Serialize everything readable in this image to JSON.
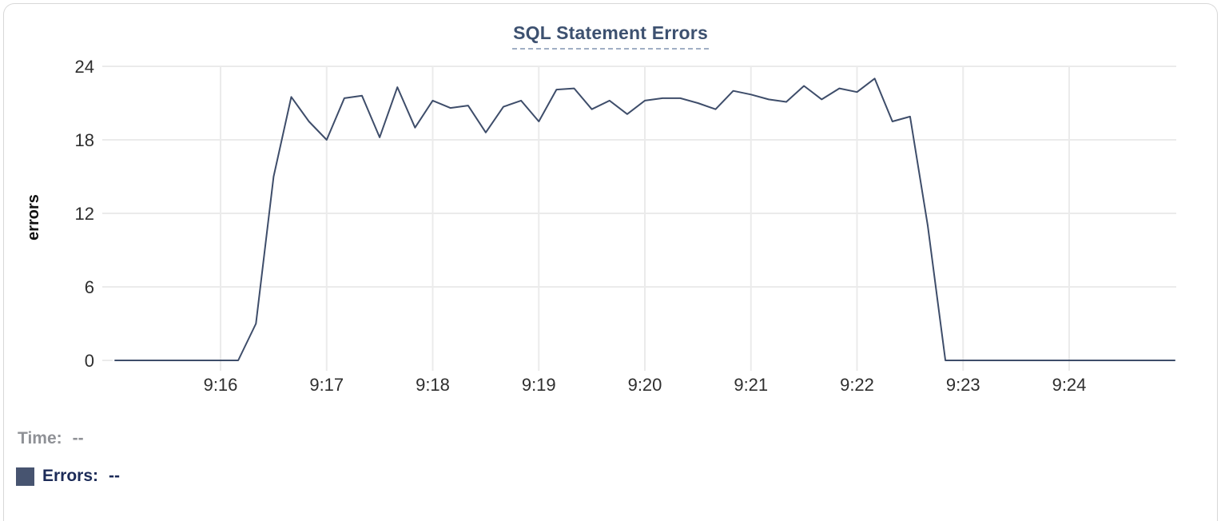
{
  "header": {
    "title": "SQL Statement Errors"
  },
  "legend": {
    "time_label": "Time:",
    "time_value": "--",
    "errors_label": "Errors:",
    "errors_value": "--"
  },
  "colors": {
    "line": "#3e4d6a",
    "swatch": "#475470",
    "title": "#3d5170",
    "title_underline": "#a0aec4",
    "grid": "#ebebeb",
    "tick_text": "#2e2e2e",
    "axis_label_text": "#111111",
    "legend_time_text": "#8f9196",
    "legend_errors_text": "#1c2b58",
    "card_border": "#d8d8d8"
  },
  "chart_data": {
    "type": "line",
    "title": "SQL Statement Errors",
    "xlabel": "",
    "ylabel": "errors",
    "ylim": [
      0,
      24
    ],
    "yticks": [
      0,
      6,
      12,
      18,
      24
    ],
    "xticks": [
      "9:16",
      "9:17",
      "9:18",
      "9:19",
      "9:20",
      "9:21",
      "9:22",
      "9:23",
      "9:24"
    ],
    "grid": true,
    "legend_position": "bottom-left",
    "series": [
      {
        "name": "Errors",
        "x": [
          "9:15:00",
          "9:15:10",
          "9:15:20",
          "9:15:30",
          "9:15:40",
          "9:15:50",
          "9:16:00",
          "9:16:10",
          "9:16:20",
          "9:16:30",
          "9:16:40",
          "9:16:50",
          "9:17:00",
          "9:17:10",
          "9:17:20",
          "9:17:30",
          "9:17:40",
          "9:17:50",
          "9:18:00",
          "9:18:10",
          "9:18:20",
          "9:18:30",
          "9:18:40",
          "9:18:50",
          "9:19:00",
          "9:19:10",
          "9:19:20",
          "9:19:30",
          "9:19:40",
          "9:19:50",
          "9:20:00",
          "9:20:10",
          "9:20:20",
          "9:20:30",
          "9:20:40",
          "9:20:50",
          "9:21:00",
          "9:21:10",
          "9:21:20",
          "9:21:30",
          "9:21:40",
          "9:21:50",
          "9:22:00",
          "9:22:10",
          "9:22:20",
          "9:22:30",
          "9:22:40",
          "9:22:50",
          "9:23:00",
          "9:23:10",
          "9:23:20",
          "9:23:30",
          "9:23:40",
          "9:23:50",
          "9:24:00",
          "9:24:10",
          "9:24:20",
          "9:24:30",
          "9:24:40",
          "9:24:50",
          "9:25:00"
        ],
        "y": [
          0,
          0,
          0,
          0,
          0,
          0,
          0,
          0,
          3,
          15,
          21.5,
          19.5,
          18,
          21.4,
          21.6,
          18.2,
          22.3,
          19,
          21.2,
          20.6,
          20.8,
          18.6,
          20.7,
          21.2,
          19.5,
          22.1,
          22.2,
          20.5,
          21.2,
          20.1,
          21.2,
          21.4,
          21.4,
          21,
          20.5,
          22,
          21.7,
          21.3,
          21.1,
          22.4,
          21.3,
          22.2,
          21.9,
          23,
          19.5,
          19.9,
          11,
          0,
          0,
          0,
          0,
          0,
          0,
          0,
          0,
          0,
          0,
          0,
          0,
          0,
          0
        ]
      }
    ]
  }
}
